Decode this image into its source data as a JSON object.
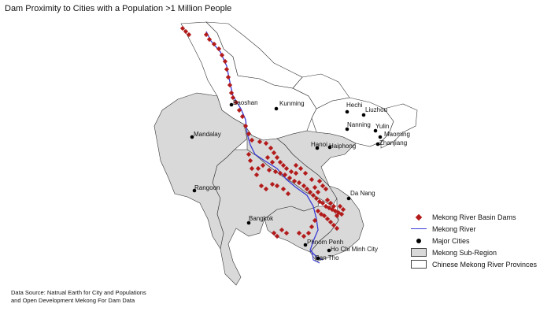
{
  "map": {
    "title": "Dam Proximity to Cities with a Population >1 Million People"
  },
  "cities": [
    {
      "name": "Kunming"
    },
    {
      "name": "Baoshan"
    },
    {
      "name": "Hechi"
    },
    {
      "name": "Liuzhou"
    },
    {
      "name": "Nanning"
    },
    {
      "name": "Yulin"
    },
    {
      "name": "Maoming"
    },
    {
      "name": "Zhanjiang"
    },
    {
      "name": "Mandalay"
    },
    {
      "name": "Hanoi"
    },
    {
      "name": "Haiphong"
    },
    {
      "name": "Rangoon"
    },
    {
      "name": "Da Nang"
    },
    {
      "name": "Bangkok"
    },
    {
      "name": "Phnom Penh"
    },
    {
      "name": "Ho Chi Minh City"
    },
    {
      "name": "Can Tho"
    }
  ],
  "legend": {
    "items": [
      {
        "label": "Mekong River Basin Dams",
        "symbol": "dam-diamond-icon",
        "color": "#b31b1b"
      },
      {
        "label": "Mekong River",
        "symbol": "river-line-icon",
        "color": "#3b3bd6"
      },
      {
        "label": "Major Cities",
        "symbol": "city-dot-icon",
        "color": "#000000"
      },
      {
        "label": "Mekong Sub-Region",
        "symbol": "subregion-swatch-icon",
        "color": "#d9d9d9"
      },
      {
        "label": "Chinese Mekong River Provinces",
        "symbol": "province-swatch-icon",
        "color": "#ffffff"
      }
    ]
  },
  "source": {
    "line1": "Data Source: Natrual Earth for City and Populations",
    "line2": "and Open Development Mekong For Dam Data"
  },
  "colors": {
    "subregion_fill": "#d9d9d9",
    "china_fill": "#ffffff",
    "border": "#333333",
    "river": "#3b3bd6",
    "dam": "#b31b1b",
    "city": "#000000"
  }
}
